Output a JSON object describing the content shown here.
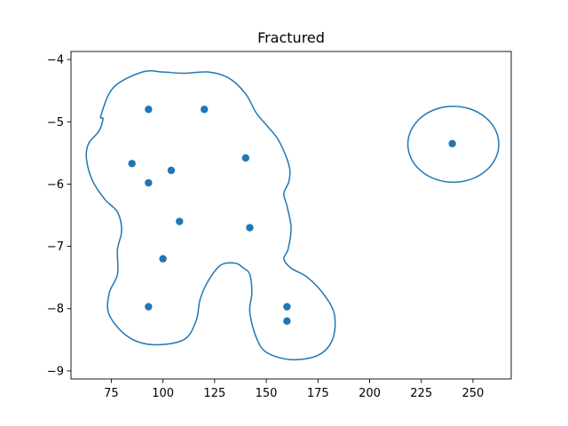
{
  "chart_data": {
    "type": "scatter",
    "title": "Fractured",
    "xlabel": "",
    "ylabel": "",
    "xlim": [
      55.5,
      268.5
    ],
    "ylim": [
      -9.13,
      -3.87
    ],
    "x_ticks": [
      75,
      100,
      125,
      150,
      175,
      200,
      225,
      250
    ],
    "x_tick_labels": [
      "75",
      "100",
      "125",
      "150",
      "175",
      "200",
      "225",
      "250"
    ],
    "y_ticks": [
      -4,
      -5,
      -6,
      -7,
      -8,
      -9
    ],
    "y_tick_labels": [
      "−4",
      "−5",
      "−6",
      "−7",
      "−8",
      "−9"
    ],
    "grid": false,
    "legend": "none",
    "series": [
      {
        "points": [
          {
            "x": 93,
            "y": -4.8
          },
          {
            "x": 120,
            "y": -4.8
          },
          {
            "x": 85,
            "y": -5.67
          },
          {
            "x": 104,
            "y": -5.78
          },
          {
            "x": 93,
            "y": -5.98
          },
          {
            "x": 140,
            "y": -5.58
          },
          {
            "x": 108,
            "y": -6.6
          },
          {
            "x": 142,
            "y": -6.7
          },
          {
            "x": 100,
            "y": -7.2
          },
          {
            "x": 93,
            "y": -7.97
          },
          {
            "x": 160,
            "y": -7.97
          },
          {
            "x": 160,
            "y": -8.2
          },
          {
            "x": 240,
            "y": -5.35
          }
        ]
      }
    ],
    "contours": [
      {
        "name": "left-blob",
        "points": [
          [
            70,
            -4.9
          ],
          [
            76,
            -4.45
          ],
          [
            90,
            -4.2
          ],
          [
            100,
            -4.2
          ],
          [
            110,
            -4.22
          ],
          [
            122,
            -4.2
          ],
          [
            132,
            -4.3
          ],
          [
            140,
            -4.55
          ],
          [
            145,
            -4.85
          ],
          [
            150,
            -5.05
          ],
          [
            156,
            -5.3
          ],
          [
            161,
            -5.7
          ],
          [
            161,
            -5.95
          ],
          [
            158.5,
            -6.15
          ],
          [
            160,
            -6.35
          ],
          [
            162,
            -6.7
          ],
          [
            160.5,
            -7.05
          ],
          [
            158.5,
            -7.2
          ],
          [
            162,
            -7.35
          ],
          [
            170,
            -7.5
          ],
          [
            178,
            -7.78
          ],
          [
            183,
            -8.1
          ],
          [
            182,
            -8.5
          ],
          [
            175,
            -8.75
          ],
          [
            162,
            -8.82
          ],
          [
            150,
            -8.7
          ],
          [
            145,
            -8.45
          ],
          [
            142,
            -8.05
          ],
          [
            143,
            -7.75
          ],
          [
            142,
            -7.45
          ],
          [
            139,
            -7.35
          ],
          [
            135,
            -7.27
          ],
          [
            128,
            -7.3
          ],
          [
            122,
            -7.55
          ],
          [
            118,
            -7.85
          ],
          [
            116,
            -8.2
          ],
          [
            110,
            -8.5
          ],
          [
            95,
            -8.58
          ],
          [
            83,
            -8.45
          ],
          [
            74,
            -8.1
          ],
          [
            74,
            -7.75
          ],
          [
            78,
            -7.45
          ],
          [
            78,
            -7.05
          ],
          [
            80,
            -6.75
          ],
          [
            78,
            -6.45
          ],
          [
            72,
            -6.25
          ],
          [
            66,
            -5.95
          ],
          [
            63,
            -5.6
          ],
          [
            64,
            -5.35
          ],
          [
            69,
            -5.15
          ],
          [
            71,
            -4.95
          ]
        ]
      },
      {
        "name": "right-ellipse",
        "ellipse": {
          "cx": 240.5,
          "cy": -5.36,
          "rx": 22,
          "ry": 0.61
        }
      }
    ]
  }
}
